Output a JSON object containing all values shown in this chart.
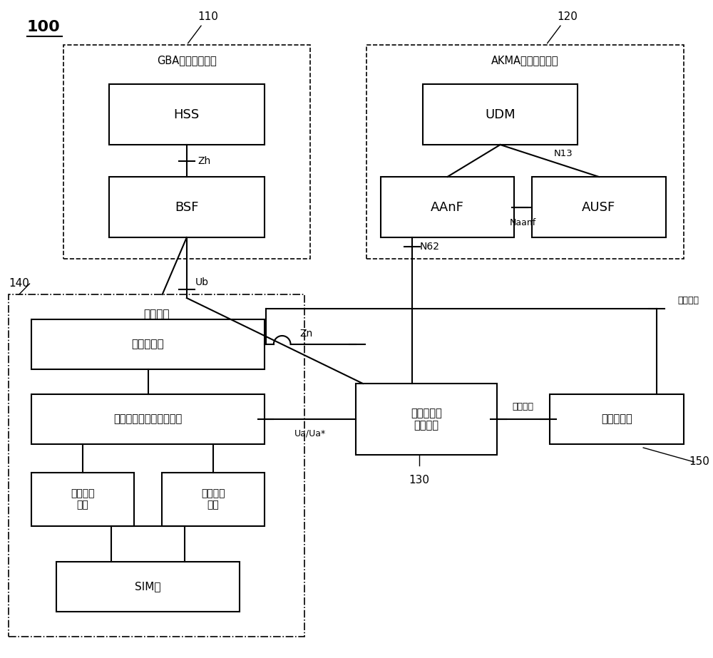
{
  "fig_width": 10.0,
  "fig_height": 9.23,
  "bg_color": "#ffffff",
  "title_100": "100",
  "label_110": "110",
  "label_120": "120",
  "label_140": "140",
  "label_130": "130",
  "label_150": "150",
  "gba_label": "GBA的网络侧架构",
  "akma_label": "AKMA的网络侧架构",
  "hss_label": "HSS",
  "bsf_label": "BSF",
  "udm_label": "UDM",
  "aanf_label": "AAnF",
  "ausf_label": "AUSF",
  "terminal_label": "终端设备",
  "app_client_label": "应用客户端",
  "app_key_mid_label": "应用层密鑅中间功能模块",
  "cap1_label": "第一能力\n模块",
  "cap2_label": "第二能力\n模块",
  "sim_label": "SIM卡",
  "app_key_svc_label": "应用层密鑅\n服务网元",
  "app_server_label": "应用服务器",
  "zh_label": "Zh",
  "ub_label": "Ub",
  "zn_label": "Zn",
  "n13_label": "N13",
  "naanf_label": "Naanf",
  "n62_label": "N62",
  "ua_label": "Ua/Ua*",
  "app_iface_top_label": "应用接口",
  "app_iface_bot_label": "应用接口"
}
